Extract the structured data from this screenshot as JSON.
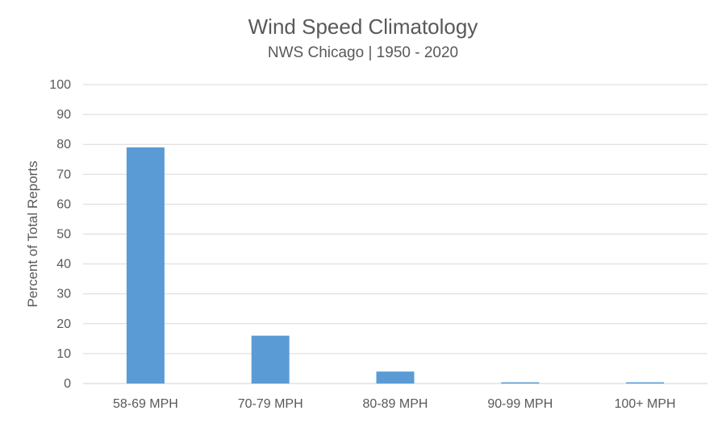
{
  "chart_data": {
    "type": "bar",
    "title": "Wind Speed Climatology",
    "subtitle": "NWS Chicago | 1950 - 2020",
    "xlabel": "",
    "ylabel": "Percent of Total Reports",
    "categories": [
      "58-69 MPH",
      "70-79 MPH",
      "80-89 MPH",
      "90-99 MPH",
      "100+ MPH"
    ],
    "values": [
      79,
      16,
      4,
      0.4,
      0.4
    ],
    "ylim": [
      0,
      100
    ],
    "yticks": [
      0,
      10,
      20,
      30,
      40,
      50,
      60,
      70,
      80,
      90,
      100
    ],
    "grid": true,
    "legend": "none",
    "bar_color": "#5B9BD5",
    "grid_color": "#D9D9D9",
    "text_color": "#595959"
  }
}
